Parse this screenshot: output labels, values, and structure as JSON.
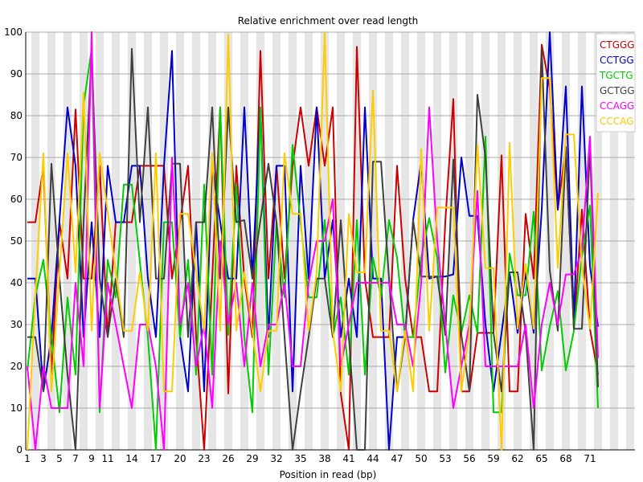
{
  "chart_data": {
    "type": "line",
    "title": "Relative enrichment over read length",
    "xlabel": "Position in read (bp)",
    "ylabel": "",
    "ylim": [
      0,
      100
    ],
    "x": [
      1,
      2,
      3,
      4,
      5,
      6,
      7,
      8,
      9,
      10,
      11,
      12,
      13,
      14,
      15,
      16,
      17,
      18,
      19,
      20,
      21,
      22,
      23,
      24,
      25,
      26,
      27,
      28,
      29,
      30,
      31,
      32,
      33,
      34,
      35,
      36,
      37,
      38,
      39,
      40,
      41,
      42,
      43,
      44,
      45,
      46,
      47,
      48,
      49,
      50,
      51,
      52,
      53,
      54,
      55,
      56,
      57,
      58,
      59,
      60,
      61,
      62,
      63,
      64,
      65,
      66,
      67,
      68,
      69,
      70,
      71,
      72
    ],
    "x_tick_labels": [
      "1",
      "3",
      "5",
      "7",
      "9",
      "11",
      "14",
      "17",
      "20",
      "23",
      "26",
      "29",
      "32",
      "35",
      "38",
      "41",
      "44",
      "47",
      "50",
      "53",
      "56",
      "59",
      "62",
      "65",
      "68",
      "71"
    ],
    "x_tick_positions": [
      1,
      3,
      5,
      7,
      9,
      11,
      14,
      17,
      20,
      23,
      26,
      29,
      32,
      35,
      38,
      41,
      44,
      47,
      50,
      53,
      56,
      59,
      62,
      65,
      68,
      71
    ],
    "y_ticks": [
      0,
      10,
      20,
      30,
      40,
      50,
      60,
      70,
      80,
      90,
      100
    ],
    "grid": true,
    "legend_position": "top-right",
    "series": [
      {
        "name": "CTGGG",
        "color": "#cc0000",
        "values": [
          54.5,
          54.5,
          68,
          18,
          54.5,
          41,
          81.5,
          41,
          41,
          68,
          27,
          54.5,
          54.5,
          54.5,
          68,
          68,
          68,
          68,
          41,
          54.5,
          68,
          27,
          0,
          41,
          82,
          13.5,
          68,
          41,
          27,
          95.5,
          41,
          68,
          41,
          68,
          82,
          68,
          82,
          68,
          82,
          13.5,
          0,
          96.5,
          41,
          27,
          27,
          27,
          68,
          41,
          27,
          27,
          14,
          14,
          54.5,
          84,
          14,
          14,
          28,
          28,
          28,
          70.5,
          14,
          14,
          56.5,
          41,
          97,
          86.5,
          57.5,
          72.5,
          29,
          57.5,
          29,
          18
        ]
      },
      {
        "name": "CCTGG",
        "color": "#0000cc",
        "values": [
          41,
          41,
          14,
          27,
          55,
          82,
          68,
          27,
          54.5,
          27,
          68,
          54.5,
          54.5,
          68,
          68,
          41,
          27,
          68,
          95.5,
          27,
          14,
          54.5,
          14,
          68,
          54.5,
          41,
          41,
          82,
          41,
          82,
          27,
          68,
          68,
          14,
          68,
          41,
          82,
          41,
          55,
          27,
          41,
          27,
          82,
          41,
          41,
          0,
          27,
          27,
          55,
          69,
          41,
          41.5,
          41.5,
          42,
          70,
          56,
          56,
          30,
          14,
          28,
          42.5,
          28,
          42.5,
          28,
          57.5,
          100,
          57.5,
          87,
          31,
          87,
          44,
          29.5
        ]
      },
      {
        "name": "TGCTG",
        "color": "#00cc00",
        "values": [
          19,
          37,
          45.5,
          27,
          9,
          36.5,
          18,
          82.5,
          96,
          9,
          45.5,
          36.5,
          63.5,
          63.5,
          45,
          27,
          0,
          54.5,
          54.5,
          27,
          45.5,
          18,
          63.5,
          18,
          82,
          27.5,
          63.5,
          27,
          9,
          82,
          18,
          54.5,
          36.5,
          73,
          54.5,
          36.5,
          36.5,
          55,
          27,
          36.5,
          18,
          55,
          18,
          46,
          36.5,
          55,
          46,
          27,
          27,
          46,
          55.5,
          46,
          18.5,
          37,
          28,
          37,
          28,
          75,
          9,
          9,
          47,
          37,
          37,
          57,
          19,
          29.5,
          38,
          19,
          28.5,
          46.5,
          58.5,
          10
        ]
      },
      {
        "name": "GCTGG",
        "color": "#404040",
        "values": [
          27,
          27,
          14,
          68.5,
          41,
          18,
          0,
          54.5,
          95.5,
          41,
          27,
          41,
          27,
          96,
          54.5,
          82,
          41,
          41,
          68.5,
          68.5,
          27,
          54.5,
          54.5,
          82,
          41,
          82,
          54.5,
          55,
          41,
          55,
          68.5,
          54.5,
          27,
          0,
          14,
          27,
          41,
          41,
          27,
          55,
          27,
          0,
          0,
          69,
          69,
          41,
          14,
          27,
          55,
          41.5,
          41.5,
          41.5,
          27.5,
          69.5,
          27.5,
          14,
          85,
          70,
          28,
          14,
          42.5,
          42.5,
          28,
          0,
          96,
          43,
          28.5,
          72.5,
          29,
          29,
          72.5,
          15
        ]
      },
      {
        "name": "CCAGG",
        "color": "#ff00ff",
        "values": [
          20,
          0,
          20,
          10,
          10,
          10,
          40,
          20,
          100,
          10,
          40,
          30,
          20,
          10,
          30,
          30,
          20,
          0,
          70,
          30,
          40,
          20,
          30,
          10,
          50,
          30,
          40,
          20,
          40,
          20,
          30,
          30,
          40,
          20,
          20,
          40,
          50,
          50,
          60,
          20,
          30,
          40,
          40,
          40,
          40,
          40,
          30,
          30,
          20,
          40,
          82,
          50,
          30,
          10,
          20,
          30,
          62,
          20,
          20,
          20,
          20,
          20,
          30,
          10,
          30,
          40,
          30,
          42,
          42,
          48,
          75,
          22
        ]
      },
      {
        "name": "CCCAG",
        "color": "#ffcc00",
        "values": [
          0,
          37,
          71,
          14,
          42.5,
          71,
          42.5,
          85.5,
          28.5,
          71,
          57,
          42.5,
          28.5,
          28.5,
          42.5,
          28.5,
          71,
          14,
          14,
          56.5,
          56.5,
          42.5,
          28.5,
          71,
          28.5,
          99.5,
          28.5,
          42.5,
          28.5,
          14,
          28.5,
          28.5,
          71,
          56.5,
          56.5,
          28.5,
          42.5,
          100,
          28.5,
          14,
          56.5,
          42.5,
          42.5,
          86,
          28.5,
          28.5,
          14,
          28.5,
          14,
          72,
          28.5,
          58,
          58,
          58,
          14,
          28.5,
          73,
          43.5,
          43.5,
          0,
          73.5,
          29,
          44.5,
          29,
          89,
          89,
          43.5,
          75.5,
          75.5,
          44,
          29,
          61.5
        ]
      }
    ]
  }
}
